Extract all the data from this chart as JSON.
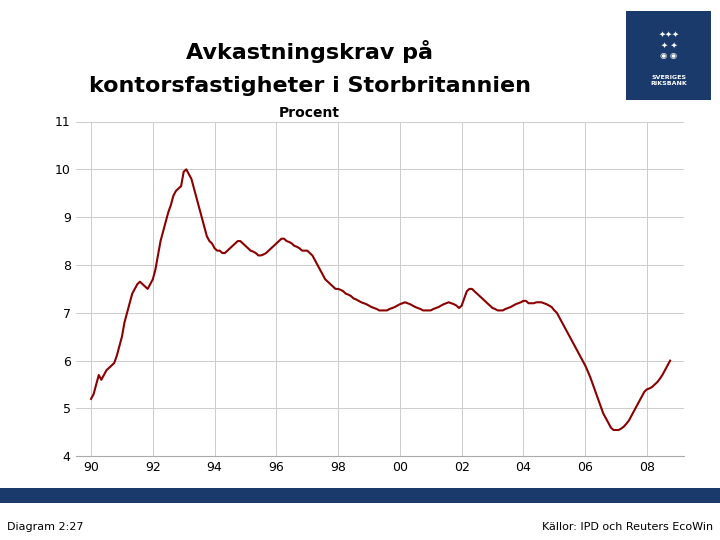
{
  "title_line1": "Avkastningskrav på",
  "title_line2": "kontorsfastigheter i Storbritannien",
  "subtitle": "Procent",
  "diagram_label": "Diagram 2:27",
  "source_label": "Källor: IPD och Reuters EcoWin",
  "line_color": "#8B0000",
  "background_color": "#ffffff",
  "footer_bar_color": "#1a3a6b",
  "ylim": [
    4,
    11
  ],
  "yticks": [
    4,
    5,
    6,
    7,
    8,
    9,
    10,
    11
  ],
  "xtick_positions": [
    1990,
    1992,
    1994,
    1996,
    1998,
    2000,
    2002,
    2004,
    2006,
    2008
  ],
  "xtick_labels": [
    "90",
    "92",
    "94",
    "96",
    "98",
    "00",
    "02",
    "04",
    "06",
    "08"
  ],
  "xlim": [
    1989.5,
    2009.2
  ],
  "grid_color": "#cccccc",
  "logo_color": "#1a3a6b",
  "series_x": [
    1990.0,
    1990.083,
    1990.167,
    1990.25,
    1990.333,
    1990.417,
    1990.5,
    1990.583,
    1990.667,
    1990.75,
    1990.833,
    1990.917,
    1991.0,
    1991.083,
    1991.167,
    1991.25,
    1991.333,
    1991.417,
    1991.5,
    1991.583,
    1991.667,
    1991.75,
    1991.833,
    1991.917,
    1992.0,
    1992.083,
    1992.167,
    1992.25,
    1992.333,
    1992.417,
    1992.5,
    1992.583,
    1992.667,
    1992.75,
    1992.833,
    1992.917,
    1993.0,
    1993.083,
    1993.167,
    1993.25,
    1993.333,
    1993.417,
    1993.5,
    1993.583,
    1993.667,
    1993.75,
    1993.833,
    1993.917,
    1994.0,
    1994.083,
    1994.167,
    1994.25,
    1994.333,
    1994.417,
    1994.5,
    1994.583,
    1994.667,
    1994.75,
    1994.833,
    1994.917,
    1995.0,
    1995.083,
    1995.167,
    1995.25,
    1995.333,
    1995.417,
    1995.5,
    1995.583,
    1995.667,
    1995.75,
    1995.833,
    1995.917,
    1996.0,
    1996.083,
    1996.167,
    1996.25,
    1996.333,
    1996.417,
    1996.5,
    1996.583,
    1996.667,
    1996.75,
    1996.833,
    1996.917,
    1997.0,
    1997.083,
    1997.167,
    1997.25,
    1997.333,
    1997.417,
    1997.5,
    1997.583,
    1997.667,
    1997.75,
    1997.833,
    1997.917,
    1998.0,
    1998.083,
    1998.167,
    1998.25,
    1998.333,
    1998.417,
    1998.5,
    1998.583,
    1998.667,
    1998.75,
    1998.833,
    1998.917,
    1999.0,
    1999.083,
    1999.167,
    1999.25,
    1999.333,
    1999.417,
    1999.5,
    1999.583,
    1999.667,
    1999.75,
    1999.833,
    1999.917,
    2000.0,
    2000.083,
    2000.167,
    2000.25,
    2000.333,
    2000.417,
    2000.5,
    2000.583,
    2000.667,
    2000.75,
    2000.833,
    2000.917,
    2001.0,
    2001.083,
    2001.167,
    2001.25,
    2001.333,
    2001.417,
    2001.5,
    2001.583,
    2001.667,
    2001.75,
    2001.833,
    2001.917,
    2002.0,
    2002.083,
    2002.167,
    2002.25,
    2002.333,
    2002.417,
    2002.5,
    2002.583,
    2002.667,
    2002.75,
    2002.833,
    2002.917,
    2003.0,
    2003.083,
    2003.167,
    2003.25,
    2003.333,
    2003.417,
    2003.5,
    2003.583,
    2003.667,
    2003.75,
    2003.833,
    2003.917,
    2004.0,
    2004.083,
    2004.167,
    2004.25,
    2004.333,
    2004.417,
    2004.5,
    2004.583,
    2004.667,
    2004.75,
    2004.833,
    2004.917,
    2005.0,
    2005.083,
    2005.167,
    2005.25,
    2005.333,
    2005.417,
    2005.5,
    2005.583,
    2005.667,
    2005.75,
    2005.833,
    2005.917,
    2006.0,
    2006.083,
    2006.167,
    2006.25,
    2006.333,
    2006.417,
    2006.5,
    2006.583,
    2006.667,
    2006.75,
    2006.833,
    2006.917,
    2007.0,
    2007.083,
    2007.167,
    2007.25,
    2007.333,
    2007.417,
    2007.5,
    2007.583,
    2007.667,
    2007.75,
    2007.833,
    2007.917,
    2008.0,
    2008.083,
    2008.167,
    2008.25,
    2008.333,
    2008.417,
    2008.5,
    2008.583,
    2008.667,
    2008.75
  ],
  "series_y": [
    5.2,
    5.3,
    5.5,
    5.7,
    5.6,
    5.7,
    5.8,
    5.85,
    5.9,
    5.95,
    6.1,
    6.3,
    6.5,
    6.8,
    7.0,
    7.2,
    7.4,
    7.5,
    7.6,
    7.65,
    7.6,
    7.55,
    7.5,
    7.6,
    7.7,
    7.9,
    8.2,
    8.5,
    8.7,
    8.9,
    9.1,
    9.25,
    9.45,
    9.55,
    9.6,
    9.65,
    9.95,
    10.0,
    9.9,
    9.8,
    9.6,
    9.4,
    9.2,
    9.0,
    8.8,
    8.6,
    8.5,
    8.45,
    8.35,
    8.3,
    8.3,
    8.25,
    8.25,
    8.3,
    8.35,
    8.4,
    8.45,
    8.5,
    8.5,
    8.45,
    8.4,
    8.35,
    8.3,
    8.28,
    8.25,
    8.2,
    8.2,
    8.22,
    8.25,
    8.3,
    8.35,
    8.4,
    8.45,
    8.5,
    8.55,
    8.55,
    8.5,
    8.48,
    8.45,
    8.4,
    8.38,
    8.35,
    8.3,
    8.3,
    8.3,
    8.25,
    8.2,
    8.1,
    8.0,
    7.9,
    7.8,
    7.7,
    7.65,
    7.6,
    7.55,
    7.5,
    7.5,
    7.48,
    7.45,
    7.4,
    7.38,
    7.35,
    7.3,
    7.28,
    7.25,
    7.22,
    7.2,
    7.18,
    7.15,
    7.12,
    7.1,
    7.08,
    7.05,
    7.05,
    7.05,
    7.05,
    7.08,
    7.1,
    7.12,
    7.15,
    7.18,
    7.2,
    7.22,
    7.2,
    7.18,
    7.15,
    7.12,
    7.1,
    7.08,
    7.05,
    7.05,
    7.05,
    7.05,
    7.08,
    7.1,
    7.12,
    7.15,
    7.18,
    7.2,
    7.22,
    7.2,
    7.18,
    7.15,
    7.1,
    7.15,
    7.3,
    7.45,
    7.5,
    7.5,
    7.45,
    7.4,
    7.35,
    7.3,
    7.25,
    7.2,
    7.15,
    7.1,
    7.08,
    7.05,
    7.05,
    7.05,
    7.08,
    7.1,
    7.12,
    7.15,
    7.18,
    7.2,
    7.22,
    7.25,
    7.25,
    7.2,
    7.2,
    7.2,
    7.22,
    7.22,
    7.22,
    7.2,
    7.18,
    7.15,
    7.12,
    7.05,
    7.0,
    6.9,
    6.8,
    6.7,
    6.6,
    6.5,
    6.4,
    6.3,
    6.2,
    6.1,
    6.0,
    5.9,
    5.78,
    5.65,
    5.5,
    5.35,
    5.2,
    5.05,
    4.9,
    4.8,
    4.7,
    4.6,
    4.55,
    4.55,
    4.55,
    4.58,
    4.62,
    4.68,
    4.75,
    4.85,
    4.95,
    5.05,
    5.15,
    5.25,
    5.35,
    5.4,
    5.42,
    5.45,
    5.5,
    5.55,
    5.62,
    5.7,
    5.8,
    5.9,
    6.0
  ]
}
